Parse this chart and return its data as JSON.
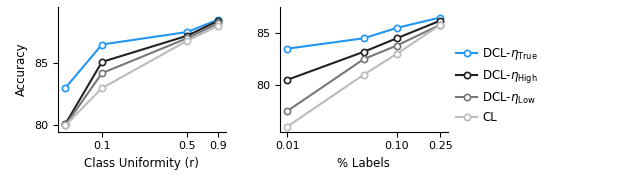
{
  "plot1": {
    "xlabel": "Class Uniformity (r)",
    "ylabel": "Accuracy",
    "xvals": [
      0.05,
      0.1,
      0.5,
      0.9
    ],
    "xticks": [
      0.1,
      0.5,
      0.9
    ],
    "ylim": [
      79.5,
      89.5
    ],
    "yticks": [
      80,
      85
    ],
    "series": {
      "DCL-eta_True": {
        "y": [
          83.0,
          86.5,
          87.5,
          88.5
        ],
        "color": "#2196F3",
        "lw": 1.5
      },
      "DCL-eta_High": {
        "y": [
          80.1,
          85.1,
          87.2,
          88.4
        ],
        "color": "#222222",
        "lw": 1.5
      },
      "DCL-eta_Low": {
        "y": [
          80.0,
          84.2,
          87.0,
          88.2
        ],
        "color": "#777777",
        "lw": 1.5
      },
      "CL": {
        "y": [
          80.0,
          83.0,
          86.8,
          88.0
        ],
        "color": "#bbbbbb",
        "lw": 1.5
      }
    }
  },
  "plot2": {
    "xlabel": "% Labels",
    "xvals": [
      0.01,
      0.05,
      0.1,
      0.25
    ],
    "xticks": [
      0.01,
      0.1,
      0.25
    ],
    "ylim": [
      75.5,
      87.5
    ],
    "yticks": [
      80,
      85
    ],
    "series": {
      "DCL-eta_True": {
        "y": [
          83.5,
          84.5,
          85.5,
          86.5
        ],
        "color": "#2196F3",
        "lw": 1.5
      },
      "DCL-eta_High": {
        "y": [
          80.5,
          83.2,
          84.5,
          86.2
        ],
        "color": "#222222",
        "lw": 1.5
      },
      "DCL-eta_Low": {
        "y": [
          77.5,
          82.5,
          83.8,
          85.8
        ],
        "color": "#777777",
        "lw": 1.5
      },
      "CL": {
        "y": [
          76.0,
          81.0,
          83.0,
          85.8
        ],
        "color": "#bbbbbb",
        "lw": 1.5
      }
    }
  },
  "legend_colors": [
    "#2196F3",
    "#222222",
    "#777777",
    "#bbbbbb"
  ],
  "marker": "o",
  "markersize": 4.5,
  "markeredgewidth": 1.2
}
